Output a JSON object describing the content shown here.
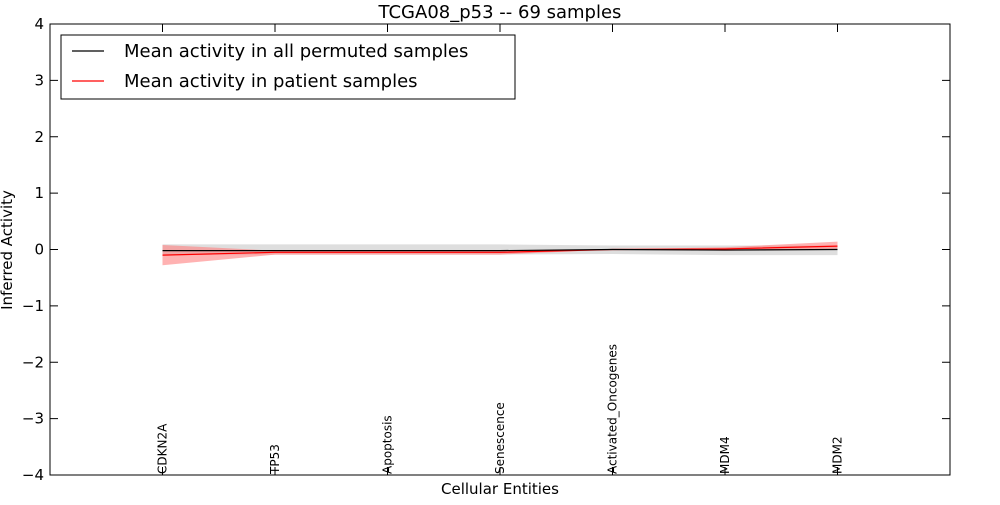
{
  "chart_data": {
    "type": "line",
    "title": "TCGA08_p53 -- 69 samples",
    "xlabel": "Cellular Entities",
    "ylabel": "Inferred Activity",
    "categories": [
      "CDKN2A",
      "TP53",
      "Apoptosis",
      "Senescence",
      "Activated_Oncogenes",
      "MDM4",
      "MDM2"
    ],
    "xlim": [
      -1,
      7
    ],
    "ylim": [
      -4,
      4
    ],
    "yticks": [
      -4,
      -3,
      -2,
      -1,
      0,
      1,
      2,
      3,
      4
    ],
    "ytick_labels": [
      "−4",
      "−3",
      "−2",
      "−1",
      "0",
      "1",
      "2",
      "3",
      "4"
    ],
    "grid": false,
    "legend_position": "top-left",
    "series": [
      {
        "name": "Mean activity in all permuted samples",
        "color": "#000000",
        "band_color": "#c8c8c8",
        "values": [
          -0.02,
          -0.02,
          -0.02,
          -0.02,
          0.0,
          -0.01,
          0.0
        ],
        "lower": [
          -0.1,
          -0.09,
          -0.09,
          -0.09,
          -0.08,
          -0.1,
          -0.1
        ],
        "upper": [
          0.09,
          0.09,
          0.09,
          0.09,
          0.07,
          0.07,
          0.07
        ]
      },
      {
        "name": "Mean activity in patient samples",
        "color": "#ff0000",
        "band_color": "#ff7f7f",
        "values": [
          -0.1,
          -0.05,
          -0.05,
          -0.05,
          0.0,
          0.01,
          0.06
        ],
        "lower": [
          -0.28,
          -0.09,
          -0.09,
          -0.09,
          0.0,
          -0.02,
          0.0
        ],
        "upper": [
          0.08,
          -0.02,
          -0.02,
          -0.02,
          0.0,
          0.04,
          0.14
        ]
      }
    ]
  }
}
